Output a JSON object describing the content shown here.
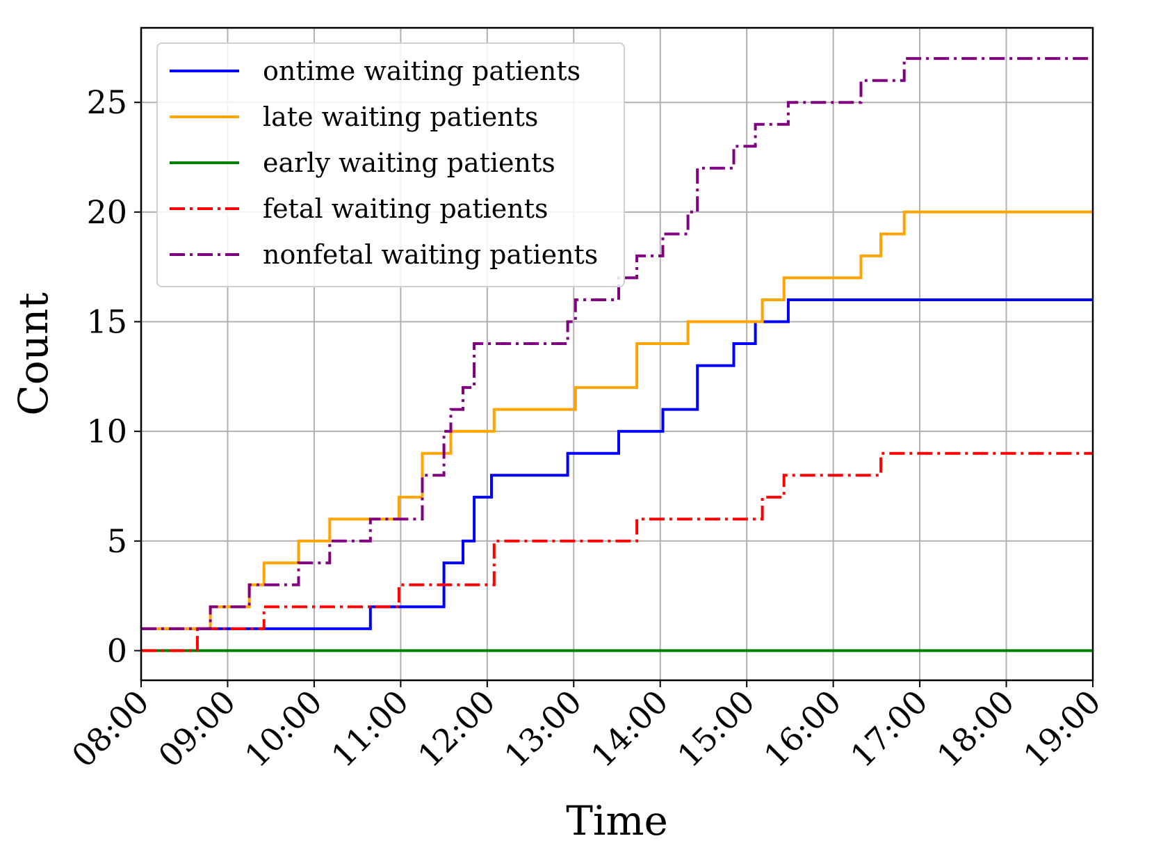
{
  "chart_data": {
    "type": "line",
    "title": "",
    "xlabel": "Time",
    "ylabel": "Count",
    "xlim": [
      8,
      19
    ],
    "ylim": [
      -1.35,
      28.4
    ],
    "grid": true,
    "legend_position": "top-left",
    "x_ticks": [
      {
        "value": 8,
        "label": "08:00"
      },
      {
        "value": 9,
        "label": "09:00"
      },
      {
        "value": 10,
        "label": "10:00"
      },
      {
        "value": 11,
        "label": "11:00"
      },
      {
        "value": 12,
        "label": "12:00"
      },
      {
        "value": 13,
        "label": "13:00"
      },
      {
        "value": 14,
        "label": "14:00"
      },
      {
        "value": 15,
        "label": "15:00"
      },
      {
        "value": 16,
        "label": "16:00"
      },
      {
        "value": 17,
        "label": "17:00"
      },
      {
        "value": 18,
        "label": "18:00"
      },
      {
        "value": 19,
        "label": "19:00"
      }
    ],
    "y_ticks": [
      {
        "value": 0,
        "label": "0"
      },
      {
        "value": 5,
        "label": "5"
      },
      {
        "value": 10,
        "label": "10"
      },
      {
        "value": 15,
        "label": "15"
      },
      {
        "value": 20,
        "label": "20"
      },
      {
        "value": 25,
        "label": "25"
      }
    ],
    "series": [
      {
        "name": "ontime waiting patients",
        "color": "#0000ff",
        "style": "solid",
        "steps": [
          [
            8,
            1
          ],
          [
            10.65,
            2
          ],
          [
            11.5,
            4
          ],
          [
            11.72,
            5
          ],
          [
            11.85,
            7
          ],
          [
            12.05,
            8
          ],
          [
            12.93,
            9
          ],
          [
            13.52,
            10
          ],
          [
            14.03,
            11
          ],
          [
            14.43,
            13
          ],
          [
            14.85,
            14
          ],
          [
            15.1,
            15
          ],
          [
            15.48,
            16
          ],
          [
            19,
            16
          ]
        ]
      },
      {
        "name": "late waiting patients",
        "color": "#ffa500",
        "style": "solid",
        "steps": [
          [
            8,
            1
          ],
          [
            8.8,
            2
          ],
          [
            9.25,
            3
          ],
          [
            9.42,
            4
          ],
          [
            9.82,
            5
          ],
          [
            10.18,
            6
          ],
          [
            10.98,
            7
          ],
          [
            11.25,
            9
          ],
          [
            11.58,
            10
          ],
          [
            12.08,
            11
          ],
          [
            13.02,
            12
          ],
          [
            13.73,
            14
          ],
          [
            14.32,
            15
          ],
          [
            15.18,
            16
          ],
          [
            15.43,
            17
          ],
          [
            16.32,
            18
          ],
          [
            16.55,
            19
          ],
          [
            16.82,
            20
          ],
          [
            19,
            20
          ]
        ]
      },
      {
        "name": "early waiting patients",
        "color": "#008000",
        "style": "solid",
        "steps": [
          [
            8,
            0
          ],
          [
            19,
            0
          ]
        ]
      },
      {
        "name": "fetal waiting patients",
        "color": "#ff0000",
        "style": "dashdot",
        "steps": [
          [
            8,
            0
          ],
          [
            8.65,
            1
          ],
          [
            9.42,
            2
          ],
          [
            10.98,
            3
          ],
          [
            12.08,
            5
          ],
          [
            13.73,
            6
          ],
          [
            15.18,
            7
          ],
          [
            15.43,
            8
          ],
          [
            16.55,
            9
          ],
          [
            19,
            9
          ]
        ]
      },
      {
        "name": "nonfetal waiting patients",
        "color": "#800080",
        "style": "dashdot",
        "steps": [
          [
            8,
            1
          ],
          [
            8.8,
            2
          ],
          [
            9.25,
            3
          ],
          [
            9.82,
            4
          ],
          [
            10.18,
            5
          ],
          [
            10.65,
            6
          ],
          [
            11.25,
            8
          ],
          [
            11.5,
            10
          ],
          [
            11.58,
            11
          ],
          [
            11.72,
            12
          ],
          [
            11.85,
            14
          ],
          [
            12.93,
            15
          ],
          [
            13.02,
            16
          ],
          [
            13.52,
            17
          ],
          [
            13.73,
            18
          ],
          [
            14.03,
            19
          ],
          [
            14.32,
            20
          ],
          [
            14.43,
            22
          ],
          [
            14.85,
            23
          ],
          [
            15.1,
            24
          ],
          [
            15.48,
            25
          ],
          [
            16.32,
            26
          ],
          [
            16.82,
            27
          ],
          [
            19,
            27
          ]
        ]
      }
    ]
  }
}
